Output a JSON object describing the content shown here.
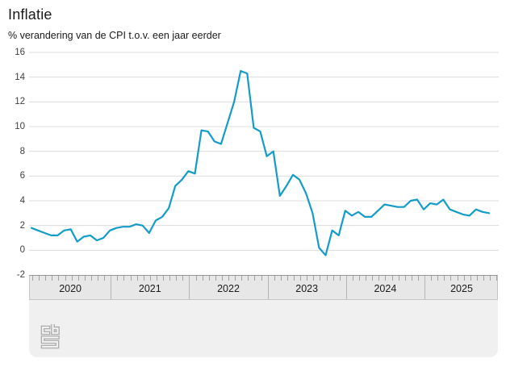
{
  "header": {
    "title": "Inflatie",
    "subtitle": "% verandering van de CPI t.o.v. een jaar eerder"
  },
  "chart_data": {
    "type": "line",
    "title": "Inflatie",
    "subtitle": "% verandering van de CPI t.o.v. een jaar eerder",
    "unit": "% change of CPI vs one year earlier",
    "x_range": {
      "start": "2020-01",
      "end": "2025-11",
      "frequency": "monthly"
    },
    "year_tick_labels": [
      "2020",
      "2021",
      "2022",
      "2023",
      "2024",
      "2025"
    ],
    "months_per_year": [
      12,
      12,
      12,
      12,
      12,
      11
    ],
    "series": [
      {
        "name": "Inflatie (CPI)",
        "values": [
          1.8,
          1.6,
          1.4,
          1.2,
          1.2,
          1.6,
          1.7,
          0.7,
          1.1,
          1.2,
          0.8,
          1.0,
          1.6,
          1.8,
          1.9,
          1.9,
          2.1,
          2.0,
          1.4,
          2.4,
          2.7,
          3.4,
          5.2,
          5.7,
          6.4,
          6.2,
          9.7,
          9.6,
          8.8,
          8.6,
          10.3,
          12.0,
          14.5,
          14.3,
          9.9,
          9.6,
          7.6,
          8.0,
          4.4,
          5.2,
          6.1,
          5.7,
          4.6,
          3.0,
          0.2,
          -0.4,
          1.6,
          1.2,
          3.2,
          2.8,
          3.1,
          2.7,
          2.7,
          3.2,
          3.7,
          3.6,
          3.5,
          3.5,
          4.0,
          4.1,
          3.3,
          3.8,
          3.7,
          4.1,
          3.3,
          3.1,
          2.9,
          2.8,
          3.3,
          3.1,
          3.0
        ]
      }
    ],
    "y_ticks": [
      -2,
      0,
      2,
      4,
      6,
      8,
      10,
      12,
      14,
      16
    ],
    "ylim": [
      -2,
      16
    ],
    "grid": true,
    "legend": false,
    "colors": {
      "line": "#149cc8",
      "gridline": "#dcdcdc",
      "axis_band_bg": "#e7e7e7",
      "footer_bg": "#f0f0f0",
      "text": "#1a1a1a"
    }
  },
  "footer": {
    "logo": "cbs-logo"
  }
}
